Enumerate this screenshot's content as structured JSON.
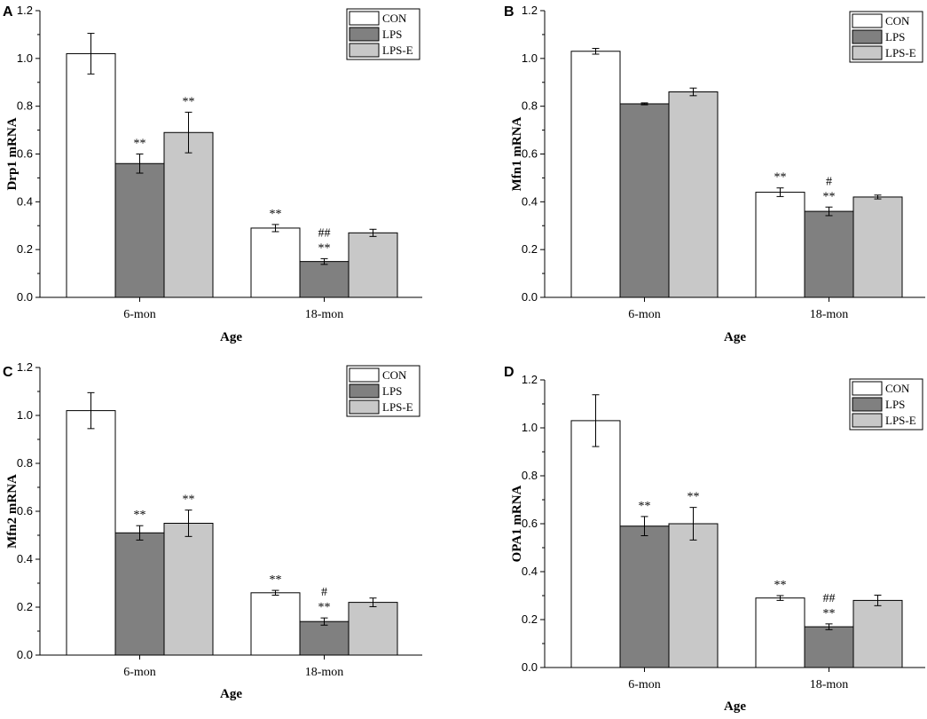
{
  "chart_data": [
    {
      "panel": "A",
      "type": "bar",
      "xlabel": "Age",
      "ylabel": "Drp1 mRNA",
      "ylim": [
        0,
        1.2
      ],
      "yticks": [
        "0.0",
        "0.2",
        "0.4",
        "0.6",
        "0.8",
        "1.0",
        "1.2"
      ],
      "categories": [
        "6-mon",
        "18-mon"
      ],
      "legend_position": "top-right",
      "series": [
        {
          "name": "CON",
          "color": "#ffffff",
          "values": [
            1.02,
            0.29
          ],
          "errors": [
            0.085,
            0.015
          ],
          "annotations": [
            "",
            "**"
          ]
        },
        {
          "name": "LPS",
          "color": "#808080",
          "values": [
            0.56,
            0.15
          ],
          "errors": [
            0.04,
            0.012
          ],
          "annotations": [
            "**",
            "##\n**"
          ]
        },
        {
          "name": "LPS-E",
          "color": "#c8c8c8",
          "values": [
            0.69,
            0.27
          ],
          "errors": [
            0.085,
            0.015
          ],
          "annotations": [
            "**",
            ""
          ]
        }
      ]
    },
    {
      "panel": "B",
      "type": "bar",
      "xlabel": "Age",
      "ylabel": "Mfn1 mRNA",
      "ylim": [
        0,
        1.2
      ],
      "yticks": [
        "0.0",
        "0.2",
        "0.4",
        "0.6",
        "0.8",
        "1.0",
        "1.2"
      ],
      "categories": [
        "6-mon",
        "18-mon"
      ],
      "legend_position": "top-right",
      "series": [
        {
          "name": "CON",
          "color": "#ffffff",
          "values": [
            1.03,
            0.44
          ],
          "errors": [
            0.012,
            0.018
          ],
          "annotations": [
            "",
            "**"
          ]
        },
        {
          "name": "LPS",
          "color": "#808080",
          "values": [
            0.81,
            0.36
          ],
          "errors": [
            0.004,
            0.018
          ],
          "annotations": [
            "",
            "#\n**"
          ]
        },
        {
          "name": "LPS-E",
          "color": "#c8c8c8",
          "values": [
            0.86,
            0.42
          ],
          "errors": [
            0.016,
            0.008
          ],
          "annotations": [
            "",
            ""
          ]
        }
      ]
    },
    {
      "panel": "C",
      "type": "bar",
      "xlabel": "Age",
      "ylabel": "Mfn2 mRNA",
      "ylim": [
        0,
        1.2
      ],
      "yticks": [
        "0.0",
        "0.2",
        "0.4",
        "0.6",
        "0.8",
        "1.0",
        "1.2"
      ],
      "categories": [
        "6-mon",
        "18-mon"
      ],
      "legend_position": "top-right",
      "series": [
        {
          "name": "CON",
          "color": "#ffffff",
          "values": [
            1.02,
            0.26
          ],
          "errors": [
            0.075,
            0.01
          ],
          "annotations": [
            "",
            "**"
          ]
        },
        {
          "name": "LPS",
          "color": "#808080",
          "values": [
            0.51,
            0.14
          ],
          "errors": [
            0.03,
            0.015
          ],
          "annotations": [
            "**",
            "#\n**"
          ]
        },
        {
          "name": "LPS-E",
          "color": "#c8c8c8",
          "values": [
            0.55,
            0.22
          ],
          "errors": [
            0.055,
            0.018
          ],
          "annotations": [
            "**",
            ""
          ]
        }
      ]
    },
    {
      "panel": "D",
      "type": "bar",
      "xlabel": "Age",
      "ylabel": "OPA1 mRNA",
      "ylim": [
        0,
        1.2
      ],
      "yticks": [
        "0.0",
        "0.2",
        "0.4",
        "0.6",
        "0.8",
        "1.0",
        "1.2"
      ],
      "categories": [
        "6-mon",
        "18-mon"
      ],
      "legend_position": "top-right",
      "series": [
        {
          "name": "CON",
          "color": "#ffffff",
          "values": [
            1.03,
            0.29
          ],
          "errors": [
            0.108,
            0.01
          ],
          "annotations": [
            "",
            "**"
          ]
        },
        {
          "name": "LPS",
          "color": "#808080",
          "values": [
            0.59,
            0.17
          ],
          "errors": [
            0.04,
            0.012
          ],
          "annotations": [
            "**",
            "##\n**"
          ]
        },
        {
          "name": "LPS-E",
          "color": "#c8c8c8",
          "values": [
            0.6,
            0.28
          ],
          "errors": [
            0.068,
            0.022
          ],
          "annotations": [
            "**",
            ""
          ]
        }
      ]
    }
  ]
}
